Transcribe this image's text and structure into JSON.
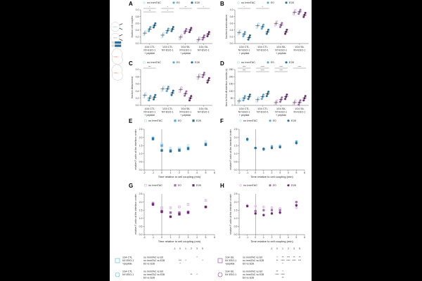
{
  "colors": {
    "ctl": [
      "#a9d8f0",
      "#5aa9d6",
      "#2b6f9a"
    ],
    "sil": [
      "#cfa3d6",
      "#a56bb4",
      "#6b2b70"
    ]
  },
  "legend": [
    "no ImmTAC",
    "E0",
    "E28"
  ],
  "schematic": {
    "cell_labels": [
      "1G4 CTL",
      "1G4 SIL"
    ],
    "target_label": "NY-ESO-1"
  },
  "chart_data": [
    {
      "id": "A",
      "type": "scatter",
      "ylabel": "fraction cell couples",
      "ylim": [
        0,
        1
      ],
      "yticks": [
        0,
        0.2,
        0.4,
        0.6,
        0.8,
        1.0
      ],
      "palette": [
        "ctl",
        "ctl",
        "sil",
        "sil"
      ],
      "categories": [
        [
          "1G4 CTL",
          "NY-ESO-1",
          "+ peptide"
        ],
        [
          "1G4 CTL",
          "NY-ESO-1"
        ],
        [
          "1G4 SIL",
          "NY-ESO-1",
          "+ peptide"
        ],
        [
          "1G4 SIL",
          "NY-ESO-1"
        ]
      ],
      "series": [
        {
          "name": "no ImmTAC",
          "values": [
            0.31,
            0.25,
            0.19,
            0.12
          ]
        },
        {
          "name": "E0",
          "values": [
            0.43,
            0.38,
            0.37,
            0.18
          ]
        },
        {
          "name": "E28",
          "values": [
            0.54,
            0.43,
            0.4,
            0.28
          ]
        }
      ],
      "significance": [
        "*",
        "*",
        "**",
        "*",
        "**",
        "*"
      ]
    },
    {
      "id": "B",
      "type": "scatter",
      "ylabel": "fraction translocations",
      "ylim": [
        0,
        1
      ],
      "yticks": [
        0,
        0.2,
        0.4,
        0.6,
        0.8,
        1.0
      ],
      "palette": [
        "ctl",
        "ctl",
        "sil",
        "sil"
      ],
      "categories": [
        [
          "1G4 CTL",
          "NY-ESO-1",
          "+ peptide"
        ],
        [
          "1G4 CTL",
          "NY-ESO-1"
        ],
        [
          "1G4 SIL",
          "NY-ESO-1",
          "+ peptide"
        ],
        [
          "1G4 SIL",
          "NY-ESO-1"
        ]
      ],
      "series": [
        {
          "name": "no ImmTAC",
          "values": [
            0.33,
            0.53,
            0.6,
            0.93
          ]
        },
        {
          "name": "E0",
          "values": [
            0.28,
            0.5,
            0.55,
            0.94
          ]
        },
        {
          "name": "E28",
          "values": [
            0.18,
            0.35,
            0.35,
            0.85
          ]
        }
      ],
      "significance": [
        "*",
        "*"
      ]
    },
    {
      "id": "C",
      "type": "scatter",
      "ylabel": "fraction detachment",
      "ylim": [
        0,
        1
      ],
      "yticks": [
        0,
        0.2,
        0.4,
        0.6,
        0.8,
        1.0
      ],
      "palette": [
        "ctl",
        "ctl",
        "sil",
        "sil"
      ],
      "categories": [
        [
          "1G4 CTL",
          "NY-ESO-1",
          "+ peptide"
        ],
        [
          "1G4 CTL",
          "NY-ESO-1"
        ],
        [
          "1G4 SIL",
          "NY-ESO-1",
          "+ peptide"
        ],
        [
          "1G4 SIL",
          "NY-ESO-1"
        ]
      ],
      "series": [
        {
          "name": "no ImmTAC",
          "values": [
            0.28,
            0.46,
            0.44,
            0.8
          ]
        },
        {
          "name": "E0",
          "values": [
            0.2,
            0.46,
            0.33,
            0.85
          ]
        },
        {
          "name": "E28",
          "values": [
            0.23,
            0.35,
            0.2,
            0.7
          ]
        }
      ],
      "significance": [
        "***"
      ]
    },
    {
      "id": "D",
      "type": "scatter",
      "ylabel": "time to first off-interface lamella (s)",
      "ylim": [
        0,
        250
      ],
      "yticks": [
        0,
        50,
        100,
        150,
        200,
        250
      ],
      "palette": [
        "ctl",
        "ctl",
        "sil",
        "sil"
      ],
      "categories": [
        [
          "1G4 CTL",
          "NY-ESO-1",
          "+ peptide"
        ],
        [
          "1G4 CTL",
          "NY-ESO-1"
        ],
        [
          "1G4 SIL",
          "NY-ESO-1",
          "+ peptide"
        ],
        [
          "1G4 SIL",
          "NY-ESO-1"
        ]
      ],
      "series": [
        {
          "name": "no ImmTAC",
          "values": [
            30,
            40,
            20,
            20
          ]
        },
        {
          "name": "E0",
          "values": [
            50,
            60,
            40,
            20
          ]
        },
        {
          "name": "E28",
          "values": [
            60,
            80,
            60,
            50
          ]
        }
      ],
      "significance": [
        "****",
        "****",
        "****",
        "****",
        "****",
        "****",
        "****"
      ]
    },
    {
      "id": "E",
      "type": "scatter",
      "palette": "ctl",
      "marker": "square",
      "ylabel": "relative F-actin at the interface center",
      "xlabel": "Time relative to cell coupling (min)",
      "xlim": [
        -2,
        6
      ],
      "ylim": [
        0,
        2.5
      ],
      "xticks": [
        -2,
        -1,
        0,
        1,
        2,
        3,
        4,
        5,
        6
      ],
      "yticks": [
        0,
        0.5,
        1.0,
        1.5,
        2.0,
        2.5
      ],
      "x": [
        -1,
        0,
        1,
        2,
        3,
        5
      ],
      "series": [
        {
          "name": "no ImmTAC",
          "values": [
            2.0,
            1.6,
            1.35,
            1.35,
            1.5,
            1.75
          ]
        },
        {
          "name": "E0",
          "values": [
            1.95,
            1.5,
            1.2,
            1.25,
            1.35,
            1.6
          ]
        },
        {
          "name": "E28",
          "values": [
            1.9,
            1.2,
            1.15,
            1.2,
            1.3,
            1.55
          ]
        }
      ]
    },
    {
      "id": "F",
      "type": "scatter",
      "palette": "ctl",
      "marker": "circle",
      "ylabel": "relative F-actin at the interface center",
      "xlabel": "Time relative to cell coupling (min)",
      "xlim": [
        -2,
        6
      ],
      "ylim": [
        0,
        2.5
      ],
      "xticks": [
        -2,
        -1,
        0,
        1,
        2,
        3,
        4,
        5,
        6
      ],
      "yticks": [
        0,
        0.5,
        1.0,
        1.5,
        2.0,
        2.5
      ],
      "x": [
        -1,
        0,
        1,
        2,
        3,
        5
      ],
      "series": [
        {
          "name": "no ImmTAC",
          "values": [
            1.9,
            1.35,
            1.3,
            1.4,
            1.5,
            1.7
          ]
        },
        {
          "name": "E0",
          "values": [
            1.85,
            1.35,
            1.25,
            1.45,
            1.45,
            1.75
          ]
        },
        {
          "name": "E28",
          "values": [
            1.9,
            1.35,
            1.3,
            1.35,
            1.4,
            1.65
          ]
        }
      ]
    },
    {
      "id": "G",
      "type": "scatter",
      "palette": "sil",
      "marker": "square",
      "ylabel": "relative F-actin at the interface center",
      "xlabel": "Time relative to cell coupling (min)",
      "xlim": [
        -2,
        6
      ],
      "ylim": [
        0,
        2.5
      ],
      "xticks": [
        -2,
        -1,
        0,
        1,
        2,
        3,
        4,
        5,
        6
      ],
      "yticks": [
        0,
        0.5,
        1.0,
        1.5,
        2.0,
        2.5
      ],
      "x": [
        -1,
        0,
        1,
        2,
        3,
        5
      ],
      "series": [
        {
          "name": "no ImmTAC",
          "values": [
            1.95,
            1.65,
            1.65,
            1.7,
            1.85,
            2.1
          ]
        },
        {
          "name": "E0",
          "values": [
            1.9,
            1.45,
            1.35,
            1.35,
            1.4,
            1.7
          ]
        },
        {
          "name": "E28",
          "values": [
            1.85,
            1.4,
            1.1,
            1.25,
            1.35,
            1.7
          ]
        }
      ]
    },
    {
      "id": "H",
      "type": "scatter",
      "palette": "sil",
      "marker": "circle",
      "ylabel": "relative F-actin at the interface center",
      "xlabel": "Time relative to cell coupling (min)",
      "xlim": [
        -2,
        6
      ],
      "ylim": [
        0,
        2.5
      ],
      "xticks": [
        -2,
        -1,
        0,
        1,
        2,
        3,
        4,
        5,
        6
      ],
      "yticks": [
        0,
        0.5,
        1.0,
        1.5,
        2.0,
        2.5
      ],
      "x": [
        -1,
        0,
        1,
        2,
        3,
        5
      ],
      "series": [
        {
          "name": "no ImmTAC",
          "values": [
            1.8,
            1.75,
            1.7,
            1.65,
            1.6,
            1.65
          ]
        },
        {
          "name": "E0",
          "values": [
            1.75,
            1.45,
            1.5,
            1.5,
            1.5,
            2.0
          ]
        },
        {
          "name": "E28",
          "values": [
            1.75,
            1.3,
            1.2,
            1.3,
            1.35,
            1.8
          ]
        }
      ]
    }
  ],
  "stats_table": {
    "timepoints": [
      "-1",
      "0",
      "1",
      "2",
      "3",
      "5"
    ],
    "comparisons": [
      "no ImmTAC vs E0",
      "no ImmTAC vs E28",
      "E0 vs E28"
    ],
    "groups": [
      {
        "label": [
          "1G4 CTL",
          "NY-ESO-1",
          "+peptide"
        ],
        "marker": "square",
        "palette": "ctl",
        "marks": [
          [
            "",
            "",
            "",
            "",
            "*",
            ""
          ],
          [
            "",
            "***",
            "*",
            "",
            "",
            "*"
          ],
          [
            "",
            "*",
            "",
            "",
            "",
            ""
          ]
        ]
      },
      {
        "label": [
          "1G4 CTL",
          "NY-ESO-1"
        ],
        "marker": "circle",
        "palette": "ctl",
        "marks": [
          [
            "",
            "",
            "",
            "",
            "",
            ""
          ],
          [
            "",
            "",
            "",
            "**",
            "*",
            ""
          ],
          [
            "",
            "",
            "",
            "",
            "",
            ""
          ]
        ]
      },
      {
        "label": [
          "1G4 SIL",
          "NY-ESO-1",
          "+peptide"
        ],
        "marker": "square",
        "palette": "sil",
        "marks": [
          [
            "",
            "*",
            "**",
            "***",
            "**",
            "**"
          ],
          [
            "",
            "**",
            "****",
            "****",
            "****",
            "***"
          ],
          [
            "",
            "",
            "*",
            "",
            "",
            ""
          ]
        ]
      },
      {
        "label": [
          "1G4 SIL",
          "NY-ESO-1"
        ],
        "marker": "circle",
        "palette": "sil",
        "marks": [
          [
            "",
            "**",
            "*",
            "",
            "",
            ""
          ],
          [
            "",
            "****",
            "****",
            "",
            "",
            " "
          ],
          [
            "",
            "",
            "**",
            "",
            "",
            ""
          ]
        ]
      }
    ]
  }
}
